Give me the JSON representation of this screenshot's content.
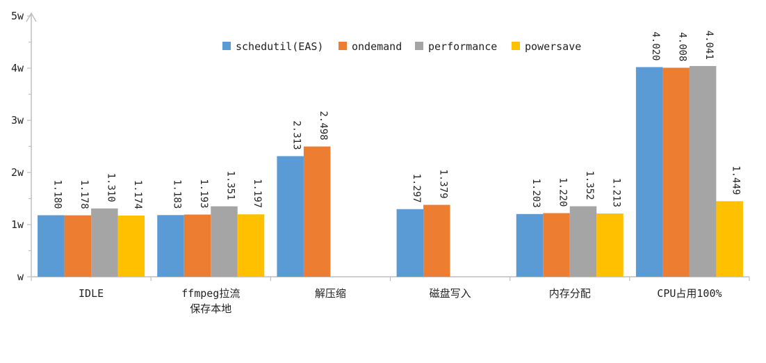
{
  "chart_data": {
    "type": "bar",
    "title": "",
    "xlabel": "",
    "ylabel": "",
    "ylim": [
      0,
      5
    ],
    "y_ticks": [
      0,
      1,
      2,
      3,
      4,
      5
    ],
    "y_tick_labels": [
      "w",
      "1w",
      "2w",
      "3w",
      "4w",
      "5w"
    ],
    "grid": false,
    "legend_position": "top",
    "categories": [
      [
        "IDLE"
      ],
      [
        "ffmpeg拉流",
        "保存本地"
      ],
      [
        "解压缩"
      ],
      [
        "磁盘写入"
      ],
      [
        "内存分配"
      ],
      [
        "CPU占用100%"
      ]
    ],
    "series": [
      {
        "name": "schedutil(EAS)",
        "color": "#5b9bd5",
        "values": [
          1.18,
          1.183,
          2.313,
          1.297,
          1.203,
          4.02
        ]
      },
      {
        "name": "ondemand",
        "color": "#ed7d31",
        "values": [
          1.178,
          1.193,
          2.498,
          1.379,
          1.22,
          4.008
        ]
      },
      {
        "name": "performance",
        "color": "#a5a5a5",
        "values": [
          1.31,
          1.351,
          null,
          null,
          1.352,
          4.041
        ]
      },
      {
        "name": "powersave",
        "color": "#ffc000",
        "values": [
          1.174,
          1.197,
          null,
          null,
          1.213,
          1.449
        ]
      }
    ],
    "axis_color": "#bfbfbf"
  }
}
